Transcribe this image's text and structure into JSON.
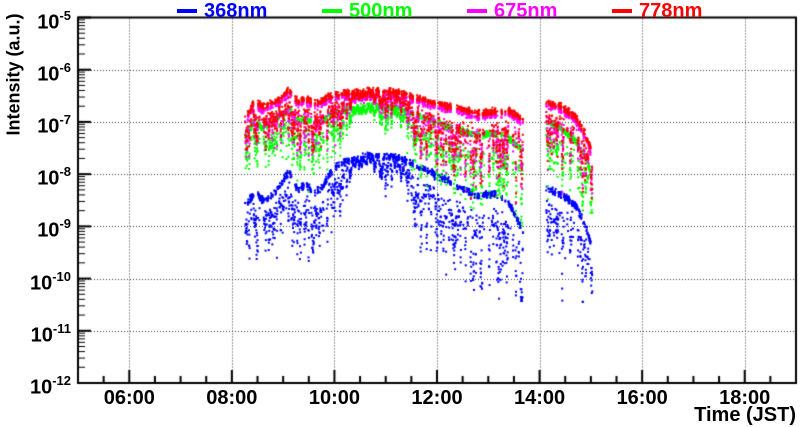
{
  "figure": {
    "background": "#ffffff",
    "frame_color": "#000000",
    "grid_color": "#3a3a3a"
  },
  "legend": {
    "items": [
      "368nm",
      "500nm",
      "675nm",
      "778nm"
    ]
  },
  "y_axis": {
    "title": "Intensity (a.u.)",
    "ticks": [
      {
        "mantissa": "10",
        "exp": "-5",
        "log": -5
      },
      {
        "mantissa": "10",
        "exp": "-6",
        "log": -6
      },
      {
        "mantissa": "10",
        "exp": "-7",
        "log": -7
      },
      {
        "mantissa": "10",
        "exp": "-8",
        "log": -8
      },
      {
        "mantissa": "10",
        "exp": "-9",
        "log": -9
      },
      {
        "mantissa": "10",
        "exp": "-10",
        "log": -10
      },
      {
        "mantissa": "10",
        "exp": "-11",
        "log": -11
      },
      {
        "mantissa": "10",
        "exp": "-12",
        "log": -12
      }
    ]
  },
  "x_axis": {
    "title": "Time (JST)",
    "ticks": [
      {
        "label": "06:00",
        "hour": 6
      },
      {
        "label": "08:00",
        "hour": 8
      },
      {
        "label": "10:00",
        "hour": 10
      },
      {
        "label": "12:00",
        "hour": 12
      },
      {
        "label": "14:00",
        "hour": 14
      },
      {
        "label": "16:00",
        "hour": 16
      },
      {
        "label": "18:00",
        "hour": 18
      }
    ],
    "minor_step_hours": 0.5
  },
  "chart_data": {
    "type": "scatter",
    "xlabel": "Time (JST)",
    "ylabel": "Intensity (a.u.)",
    "x_range_hours": [
      5,
      19
    ],
    "y_scale": "log",
    "y_range_log10": [
      -12,
      -5
    ],
    "grid": "dotted, at major ticks",
    "legend_position": "top, horizontal",
    "marker_px": 2,
    "sample_step_hours": 0.0028,
    "data_segments_hours": [
      [
        8.26,
        13.68
      ],
      [
        14.13,
        15.03
      ]
    ],
    "cloud_dip_depth_decades": [
      [
        8.26,
        1.5
      ],
      [
        8.5,
        1.3
      ],
      [
        8.65,
        1.8
      ],
      [
        8.8,
        1.5
      ],
      [
        9.0,
        1.2
      ],
      [
        9.2,
        1.6
      ],
      [
        9.35,
        2.0
      ],
      [
        9.5,
        1.5
      ],
      [
        9.65,
        1.8
      ],
      [
        9.85,
        1.4
      ],
      [
        10.0,
        1.2
      ],
      [
        10.1,
        1.3
      ],
      [
        10.25,
        0.6
      ],
      [
        10.45,
        0.3
      ],
      [
        10.7,
        0.25
      ],
      [
        10.95,
        0.7
      ],
      [
        11.05,
        0.9
      ],
      [
        11.2,
        0.4
      ],
      [
        11.35,
        0.7
      ],
      [
        11.5,
        1.4
      ],
      [
        11.7,
        1.8
      ],
      [
        11.9,
        2.0
      ],
      [
        12.1,
        2.1
      ],
      [
        12.4,
        2.2
      ],
      [
        12.7,
        2.3
      ],
      [
        13.0,
        2.2
      ],
      [
        13.3,
        2.1
      ],
      [
        13.6,
        2.3
      ],
      [
        13.68,
        2.3
      ],
      [
        14.13,
        2.0
      ],
      [
        14.45,
        2.2
      ],
      [
        14.75,
        2.0
      ],
      [
        15.03,
        1.6
      ]
    ],
    "series": [
      {
        "name": "368nm",
        "color": "#0000ff",
        "depth_scale": 1.12,
        "base_log10": [
          [
            8.26,
            -8.6
          ],
          [
            8.45,
            -8.35
          ],
          [
            8.6,
            -8.5
          ],
          [
            8.78,
            -8.42
          ],
          [
            8.95,
            -8.2
          ],
          [
            9.12,
            -7.95
          ],
          [
            9.28,
            -8.3
          ],
          [
            9.45,
            -8.2
          ],
          [
            9.6,
            -8.35
          ],
          [
            9.75,
            -8.28
          ],
          [
            9.9,
            -8.0
          ],
          [
            10.1,
            -7.8
          ],
          [
            10.35,
            -7.72
          ],
          [
            10.7,
            -7.65
          ],
          [
            11.05,
            -7.66
          ],
          [
            11.35,
            -7.72
          ],
          [
            11.6,
            -7.85
          ],
          [
            11.9,
            -7.98
          ],
          [
            12.2,
            -8.12
          ],
          [
            12.5,
            -8.28
          ],
          [
            12.8,
            -8.42
          ],
          [
            13.1,
            -8.38
          ],
          [
            13.4,
            -8.55
          ],
          [
            13.68,
            -9.1
          ],
          [
            14.13,
            -8.25
          ],
          [
            14.45,
            -8.4
          ],
          [
            14.7,
            -8.6
          ],
          [
            14.9,
            -9.0
          ],
          [
            15.03,
            -9.45
          ]
        ]
      },
      {
        "name": "500nm",
        "color": "#00ff00",
        "depth_scale": 0.88,
        "base_log10": [
          [
            8.26,
            -7.3
          ],
          [
            8.45,
            -6.95
          ],
          [
            8.6,
            -7.12
          ],
          [
            8.78,
            -7.02
          ],
          [
            8.95,
            -6.88
          ],
          [
            9.12,
            -6.76
          ],
          [
            9.28,
            -7.0
          ],
          [
            9.45,
            -6.95
          ],
          [
            9.6,
            -7.02
          ],
          [
            9.75,
            -6.98
          ],
          [
            9.9,
            -6.88
          ],
          [
            10.1,
            -6.8
          ],
          [
            10.35,
            -6.74
          ],
          [
            10.7,
            -6.7
          ],
          [
            11.05,
            -6.72
          ],
          [
            11.35,
            -6.78
          ],
          [
            11.6,
            -6.88
          ],
          [
            11.9,
            -6.98
          ],
          [
            12.2,
            -7.08
          ],
          [
            12.5,
            -7.18
          ],
          [
            12.8,
            -7.26
          ],
          [
            13.1,
            -7.22
          ],
          [
            13.4,
            -7.32
          ],
          [
            13.68,
            -7.55
          ],
          [
            14.13,
            -7.0
          ],
          [
            14.45,
            -7.15
          ],
          [
            14.7,
            -7.35
          ],
          [
            14.9,
            -7.7
          ],
          [
            15.03,
            -8.05
          ]
        ]
      },
      {
        "name": "675nm",
        "color": "#ff00ff",
        "depth_scale": 0.82,
        "base_log10": [
          [
            8.26,
            -7.02
          ],
          [
            8.45,
            -6.65
          ],
          [
            8.6,
            -6.79
          ],
          [
            8.78,
            -6.69
          ],
          [
            8.95,
            -6.63
          ],
          [
            9.12,
            -6.45
          ],
          [
            9.28,
            -6.67
          ],
          [
            9.45,
            -6.62
          ],
          [
            9.6,
            -6.71
          ],
          [
            9.75,
            -6.67
          ],
          [
            9.9,
            -6.59
          ],
          [
            10.1,
            -6.53
          ],
          [
            10.35,
            -6.5
          ],
          [
            10.7,
            -6.47
          ],
          [
            11.05,
            -6.49
          ],
          [
            11.35,
            -6.53
          ],
          [
            11.6,
            -6.61
          ],
          [
            11.9,
            -6.69
          ],
          [
            12.2,
            -6.77
          ],
          [
            12.5,
            -6.83
          ],
          [
            12.8,
            -6.91
          ],
          [
            13.1,
            -6.87
          ],
          [
            13.4,
            -6.85
          ],
          [
            13.68,
            -7.02
          ],
          [
            14.13,
            -6.69
          ],
          [
            14.45,
            -6.79
          ],
          [
            14.7,
            -6.97
          ],
          [
            14.9,
            -7.32
          ],
          [
            15.03,
            -7.67
          ]
        ]
      },
      {
        "name": "778nm",
        "color": "#ff0000",
        "depth_scale": 0.85,
        "base_log10": [
          [
            8.26,
            -6.95
          ],
          [
            8.45,
            -6.58
          ],
          [
            8.6,
            -6.72
          ],
          [
            8.78,
            -6.62
          ],
          [
            8.95,
            -6.56
          ],
          [
            9.12,
            -6.38
          ],
          [
            9.28,
            -6.6
          ],
          [
            9.45,
            -6.55
          ],
          [
            9.6,
            -6.64
          ],
          [
            9.75,
            -6.6
          ],
          [
            9.9,
            -6.52
          ],
          [
            10.1,
            -6.46
          ],
          [
            10.35,
            -6.43
          ],
          [
            10.7,
            -6.4
          ],
          [
            11.05,
            -6.42
          ],
          [
            11.35,
            -6.46
          ],
          [
            11.6,
            -6.54
          ],
          [
            11.9,
            -6.62
          ],
          [
            12.2,
            -6.7
          ],
          [
            12.5,
            -6.76
          ],
          [
            12.8,
            -6.84
          ],
          [
            13.1,
            -6.8
          ],
          [
            13.4,
            -6.78
          ],
          [
            13.68,
            -6.95
          ],
          [
            14.13,
            -6.62
          ],
          [
            14.45,
            -6.72
          ],
          [
            14.7,
            -6.9
          ],
          [
            14.9,
            -7.25
          ],
          [
            15.03,
            -7.6
          ]
        ]
      }
    ]
  }
}
